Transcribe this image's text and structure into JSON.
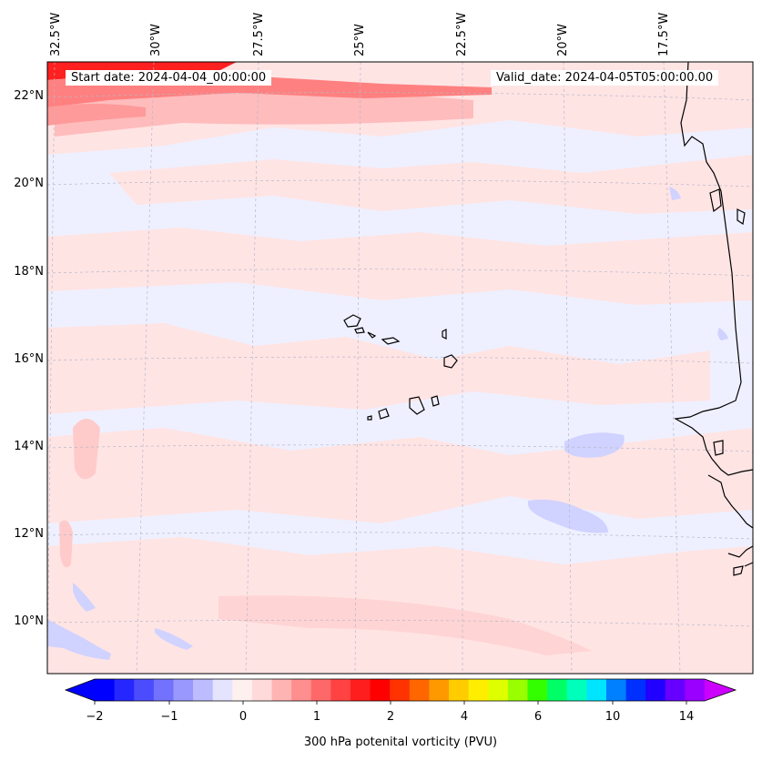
{
  "map": {
    "start_date": "Start date: 2024-04-04_00:00:00",
    "valid_date": "Valid_date: 2024-04-05T05:00:00.00",
    "lon_labels": [
      "32.5°W",
      "30°W",
      "27.5°W",
      "25°W",
      "22.5°W",
      "20°W",
      "17.5°W"
    ],
    "lat_labels": [
      "22°N",
      "20°N",
      "18°N",
      "16°N",
      "14°N",
      "12°N",
      "10°N"
    ],
    "field": "300 hPa potential vorticity",
    "colors": {
      "land_outline": "#000000",
      "background_field": "#eef0ff",
      "light_pink": "#ffe4e4",
      "pink": "#ffc8c8",
      "light_blue": "#d0d2ff",
      "red": "#ff2020",
      "strong_red": "#ff0000"
    }
  },
  "colorbar": {
    "label": "300 hPa potenital vorticity (PVU)",
    "ticks": [
      "−2",
      "−1",
      "0",
      "1",
      "2",
      "4",
      "6",
      "10",
      "14"
    ],
    "colors": [
      "#0000ff",
      "#2626ff",
      "#4c4cff",
      "#7272ff",
      "#9898ff",
      "#bcbcff",
      "#e4e4ff",
      "#fff0f0",
      "#ffdada",
      "#ffb4b4",
      "#ff8e8e",
      "#ff6868",
      "#ff4242",
      "#ff1e1e",
      "#ff0000",
      "#ff3300",
      "#ff6600",
      "#ff9900",
      "#ffcc00",
      "#ffee00",
      "#ddff00",
      "#99ff00",
      "#33ff00",
      "#00ff66",
      "#00ffbb",
      "#00e5ff",
      "#0080ff",
      "#0030ff",
      "#2200ff",
      "#6600ff",
      "#9900ff"
    ],
    "extend_min_color": "#0000ff",
    "extend_max_color": "#cc00ff"
  }
}
